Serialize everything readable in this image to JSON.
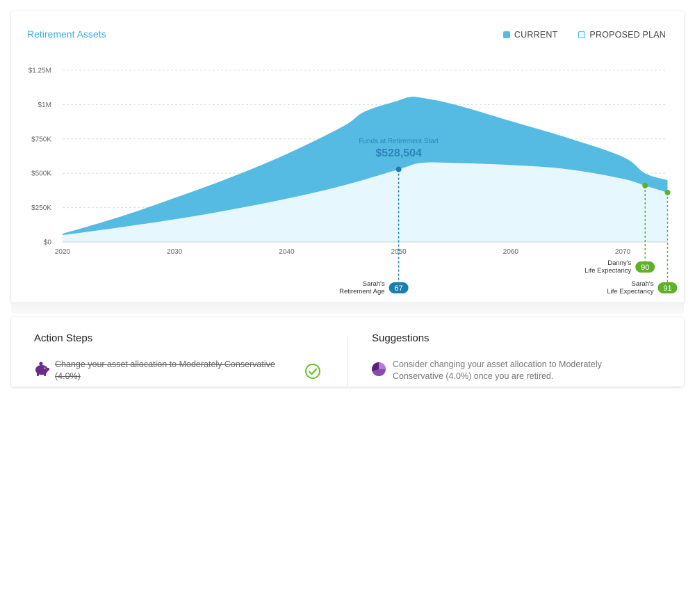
{
  "chart_card": {
    "title": "Retirement Assets",
    "legend": [
      {
        "label": "CURRENT",
        "style": "filled",
        "color": "#56bbe3"
      },
      {
        "label": "PROPOSED PLAN",
        "style": "outline",
        "color": "#e6f7fd"
      }
    ]
  },
  "chart_data": {
    "type": "area",
    "x_ticks": [
      "2020",
      "2030",
      "2040",
      "2050",
      "2060",
      "2070"
    ],
    "y_ticks": [
      "$0",
      "$250K",
      "$500K",
      "$750K",
      "$1M",
      "$1.25M"
    ],
    "ylim": [
      0,
      1250000
    ],
    "xlim": [
      2020,
      2074
    ],
    "grid": true,
    "series": [
      {
        "name": "CURRENT",
        "color": "#56bbe3",
        "x": [
          2020,
          2025,
          2030,
          2035,
          2040,
          2045,
          2047,
          2050,
          2051,
          2052,
          2055,
          2060,
          2065,
          2070,
          2072,
          2074
        ],
        "values": [
          60000,
          180000,
          320000,
          470000,
          640000,
          840000,
          950000,
          1030000,
          1055000,
          1050000,
          1000000,
          880000,
          760000,
          620000,
          500000,
          450000
        ]
      },
      {
        "name": "PROPOSED PLAN",
        "color": "#e6f7fd",
        "x": [
          2020,
          2025,
          2030,
          2035,
          2040,
          2045,
          2050,
          2052,
          2055,
          2060,
          2065,
          2070,
          2072,
          2074
        ],
        "values": [
          50000,
          105000,
          165000,
          235000,
          315000,
          410000,
          528504,
          575000,
          575000,
          560000,
          530000,
          460000,
          410000,
          360000
        ]
      }
    ],
    "annotations": {
      "retirement_start": {
        "label": "Funds at Retirement Start",
        "value_text": "$528,504",
        "x": 2050,
        "y": 528504
      },
      "markers": [
        {
          "name": "sarah-retirement",
          "line1": "Sarah's",
          "line2": "Retirement Age",
          "badge": "67",
          "x": 2050,
          "y": 528504,
          "color": "#1a7fb0",
          "badge_level": 2
        },
        {
          "name": "danny-life",
          "line1": "Danny's",
          "line2": "Life Expectancy",
          "badge": "90",
          "x": 2072,
          "y": 410000,
          "color": "#5fb12a",
          "badge_level": 1
        },
        {
          "name": "sarah-life",
          "line1": "Sarah's",
          "line2": "Life Expectancy",
          "badge": "91",
          "x": 2074,
          "y": 360000,
          "color": "#5fb12a",
          "badge_level": 2
        }
      ]
    }
  },
  "action_steps": {
    "title": "Action Steps",
    "items": [
      {
        "text": "Change your asset allocation to Moderately Conservative (4.0%)",
        "icon": "piggy-bank-icon",
        "completed": true
      }
    ]
  },
  "suggestions": {
    "title": "Suggestions",
    "items": [
      {
        "text": "Consider changing your asset allocation to Moderately Conservative (4.0%) once you are retired.",
        "icon": "pie-chart-icon"
      }
    ]
  },
  "colors": {
    "accent": "#3aaee0",
    "current_fill": "#56bbe3",
    "proposed_fill": "#e6f7fd",
    "marker_blue": "#1a7fb0",
    "marker_green": "#5fb12a",
    "purple": "#6b2c8c"
  }
}
